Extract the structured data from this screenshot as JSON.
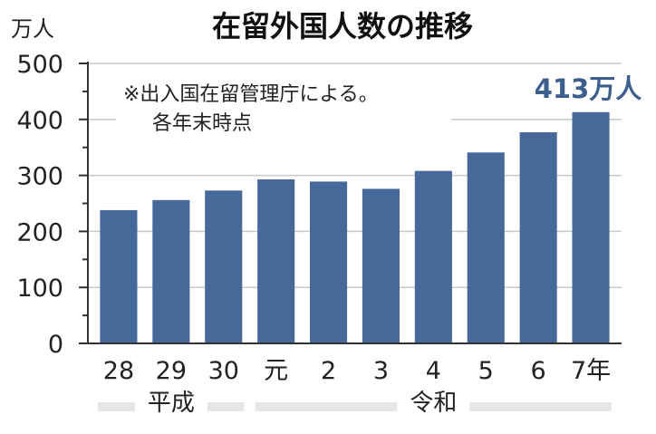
{
  "chart_data": {
    "type": "bar",
    "title": "在留外国人数の推移",
    "unit": "万人",
    "note_lines": [
      "※出入国在留管理庁による。",
      "各年末時点"
    ],
    "categories": [
      "28",
      "29",
      "30",
      "元",
      "2",
      "3",
      "4",
      "5",
      "6",
      "7年"
    ],
    "values": [
      238,
      256,
      273,
      293,
      289,
      276,
      308,
      341,
      377,
      413
    ],
    "eras": [
      {
        "label": "平成",
        "from": 0,
        "to": 2
      },
      {
        "label": "令和",
        "from": 3,
        "to": 9
      }
    ],
    "callout": {
      "text": "413万人",
      "index": 9
    },
    "ylim": [
      0,
      500
    ],
    "yticks": [
      0,
      100,
      200,
      300,
      400,
      500
    ],
    "grid": true,
    "colors": {
      "bar": "#46699a",
      "callout": "#3d5f8e",
      "grid": "#c8c8c8",
      "era_band": "#e6e6e6"
    }
  }
}
